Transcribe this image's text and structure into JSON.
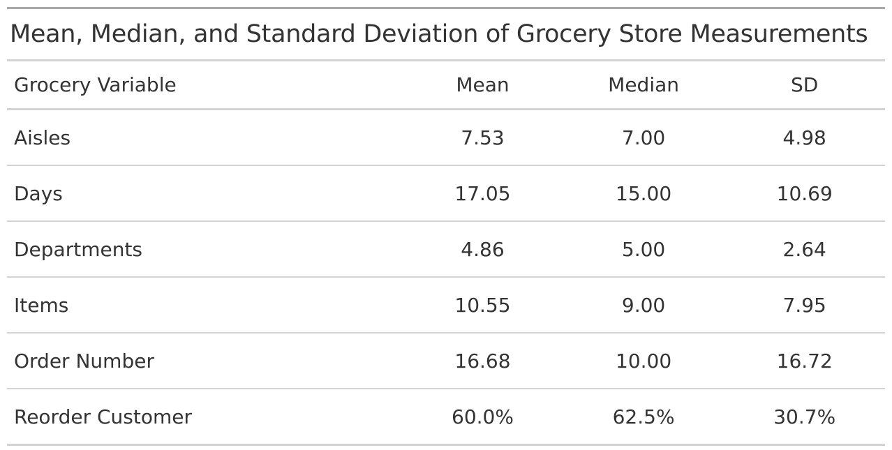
{
  "table": {
    "title": "Mean, Median, and Standard Deviation of Grocery Store Measurements",
    "columns": [
      "Grocery Variable",
      "Mean",
      "Median",
      "SD"
    ],
    "rows": [
      {
        "variable": "Aisles",
        "mean": "7.53",
        "median": "7.00",
        "sd": "4.98"
      },
      {
        "variable": "Days",
        "mean": "17.05",
        "median": "15.00",
        "sd": "10.69"
      },
      {
        "variable": "Departments",
        "mean": "4.86",
        "median": "5.00",
        "sd": "2.64"
      },
      {
        "variable": "Items",
        "mean": "10.55",
        "median": "9.00",
        "sd": "7.95"
      },
      {
        "variable": "Order Number",
        "mean": "16.68",
        "median": "10.00",
        "sd": "16.72"
      },
      {
        "variable": "Reorder Customer",
        "mean": "60.0%",
        "median": "62.5%",
        "sd": "30.7%"
      }
    ]
  }
}
